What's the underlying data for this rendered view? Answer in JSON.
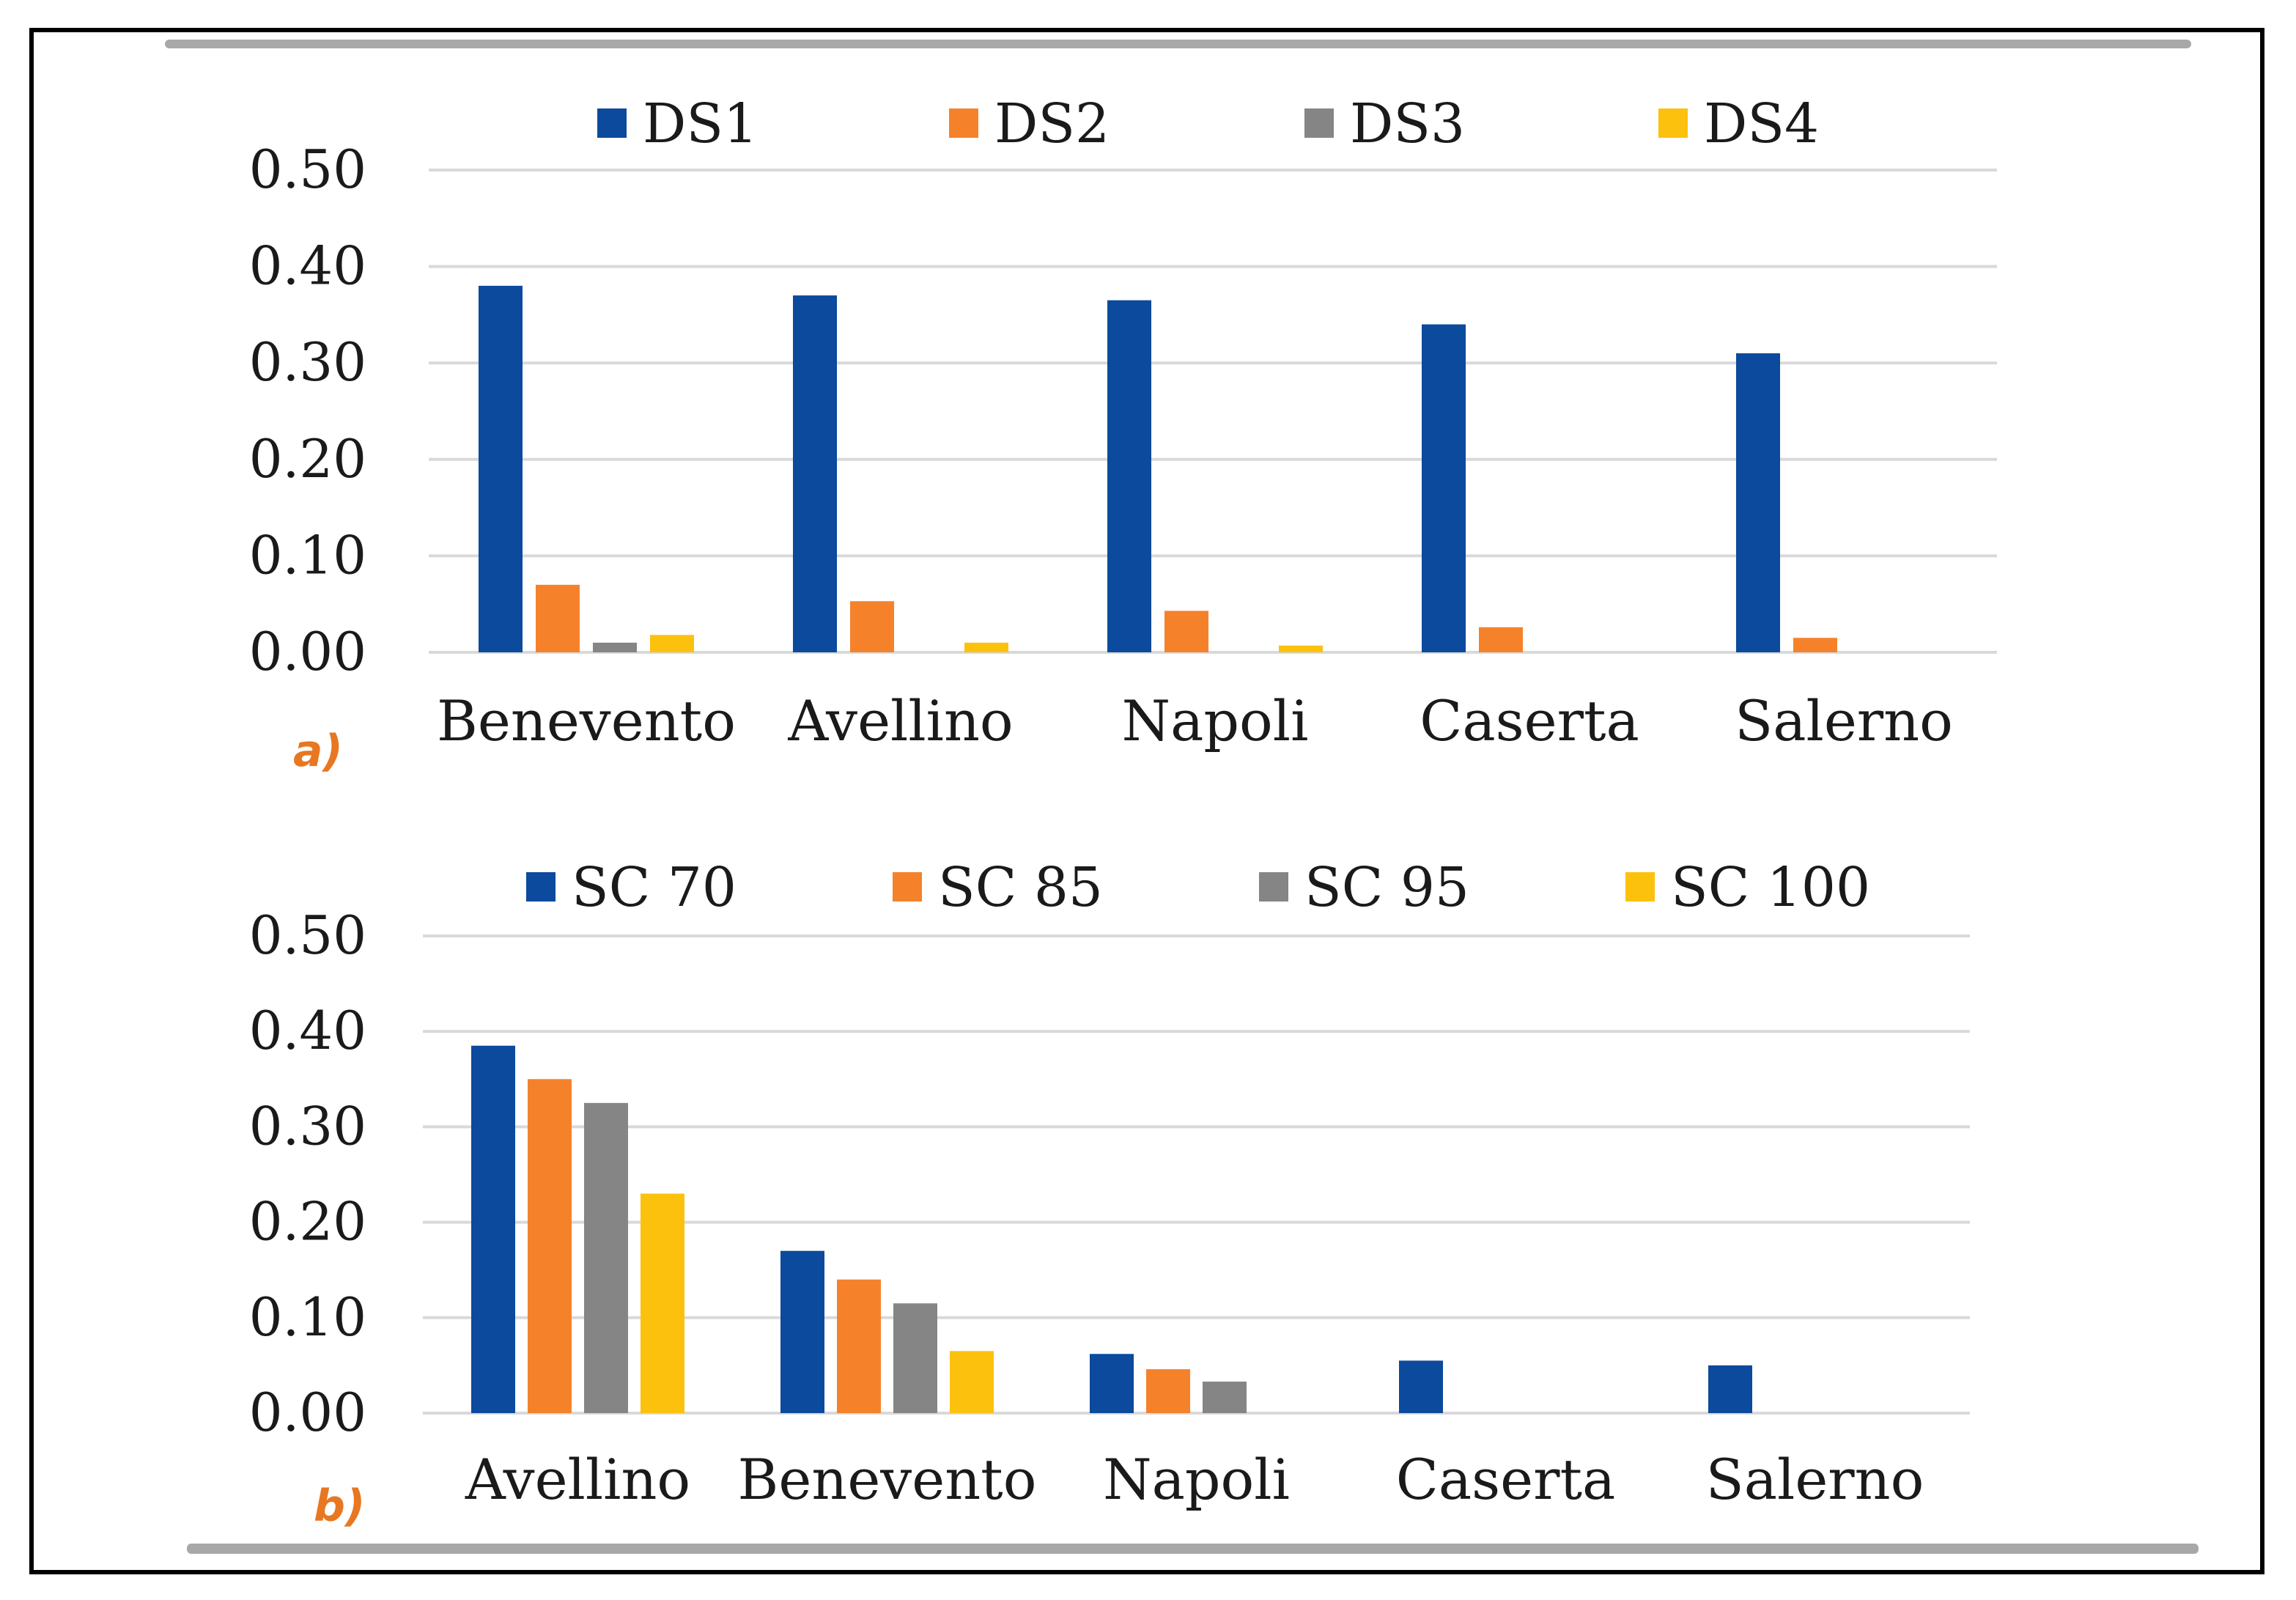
{
  "colors": {
    "series": [
      "#0b4a9c",
      "#f5822b",
      "#858585",
      "#fcc10d"
    ],
    "grid": "#d9d9d9",
    "rule": "#a8a8a8",
    "panel_tag": "#e87722"
  },
  "chart_data": [
    {
      "type": "bar",
      "panel_label": "a)",
      "title": "",
      "xlabel": "",
      "ylabel": "",
      "ylim": [
        0,
        0.5
      ],
      "yticks": [
        "0.00",
        "0.10",
        "0.20",
        "0.30",
        "0.40",
        "0.50"
      ],
      "categories": [
        "Benevento",
        "Avellino",
        "Napoli",
        "Caserta",
        "Salerno"
      ],
      "legend_position": "top",
      "series": [
        {
          "name": "DS1",
          "values": [
            0.38,
            0.37,
            0.365,
            0.34,
            0.31
          ]
        },
        {
          "name": "DS2",
          "values": [
            0.07,
            0.053,
            0.043,
            0.026,
            0.015
          ]
        },
        {
          "name": "DS3",
          "values": [
            0.01,
            0.0,
            0.0,
            0.0,
            0.0
          ]
        },
        {
          "name": "DS4",
          "values": [
            0.018,
            0.01,
            0.007,
            0.0,
            0.0
          ]
        }
      ]
    },
    {
      "type": "bar",
      "panel_label": "b)",
      "title": "",
      "xlabel": "",
      "ylabel": "",
      "ylim": [
        0,
        0.5
      ],
      "yticks": [
        "0.00",
        "0.10",
        "0.20",
        "0.30",
        "0.40",
        "0.50"
      ],
      "categories": [
        "Avellino",
        "Benevento",
        "Napoli",
        "Caserta",
        "Salerno"
      ],
      "legend_position": "top",
      "series": [
        {
          "name": "SC 70",
          "values": [
            0.385,
            0.17,
            0.062,
            0.055,
            0.05
          ]
        },
        {
          "name": "SC 85",
          "values": [
            0.35,
            0.14,
            0.046,
            0.0,
            0.0
          ]
        },
        {
          "name": "SC 95",
          "values": [
            0.325,
            0.115,
            0.033,
            0.0,
            0.0
          ]
        },
        {
          "name": "SC 100",
          "values": [
            0.23,
            0.065,
            0.0,
            0.0,
            0.0
          ]
        }
      ]
    }
  ]
}
